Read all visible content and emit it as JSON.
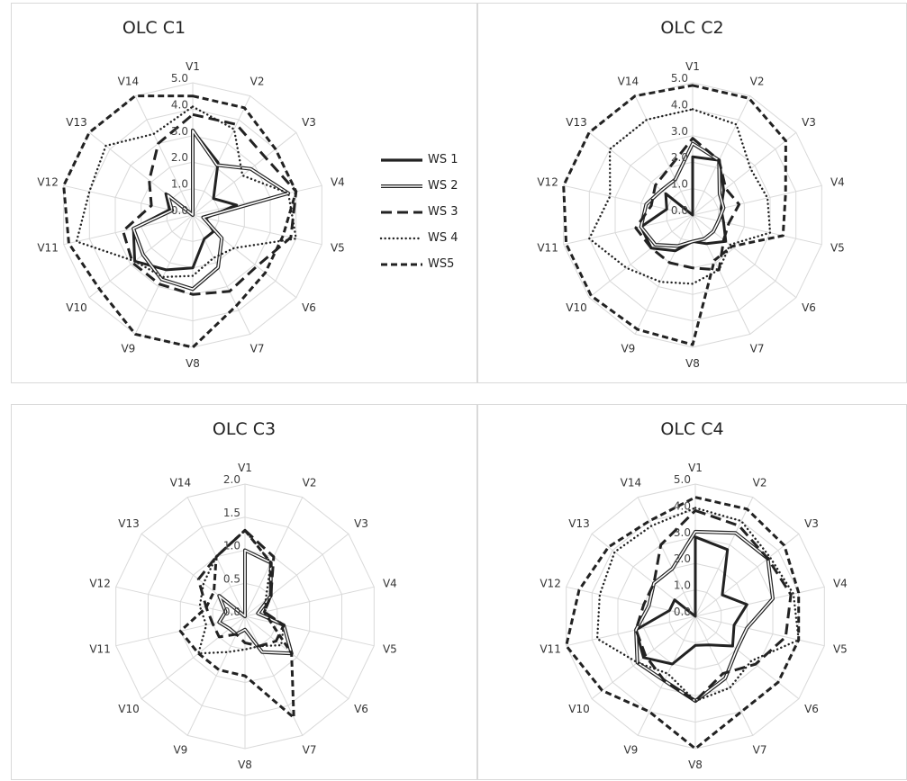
{
  "chart_data": [
    {
      "type": "radar",
      "title": "OLC C1",
      "axes": [
        "V1",
        "V2",
        "V3",
        "V4",
        "V5",
        "V6",
        "V7",
        "V8",
        "V9",
        "V10",
        "V11",
        "V12",
        "V13",
        "V14"
      ],
      "rlim": [
        0,
        5
      ],
      "ticks": [
        "0.0",
        "1.0",
        "2.0",
        "3.0",
        "4.0",
        "5.0"
      ],
      "series": [
        {
          "name": "WS 1",
          "values": [
            3.2,
            2.2,
            1.0,
            1.7,
            0.5,
            1.0,
            1.0,
            2.0,
            2.3,
            2.8,
            2.3,
            0.9,
            1.3,
            0.0
          ]
        },
        {
          "name": "WS 2",
          "values": [
            3.2,
            2.1,
            2.8,
            3.7,
            0.4,
            1.4,
            2.2,
            2.8,
            2.7,
            2.4,
            2.3,
            0.8,
            1.2,
            0.0
          ]
        },
        {
          "name": "WS 3",
          "values": [
            3.8,
            3.8,
            3.5,
            4.0,
            3.8,
            3.1,
            3.2,
            3.0,
            2.9,
            2.9,
            2.7,
            1.6,
            2.1,
            3.0
          ]
        },
        {
          "name": "WS 4",
          "values": [
            4.1,
            3.6,
            2.4,
            3.7,
            4.0,
            2.0,
            1.8,
            2.3,
            2.6,
            2.8,
            4.5,
            4.0,
            4.2,
            3.4
          ]
        },
        {
          "name": "WS5",
          "values": [
            4.5,
            4.5,
            4.0,
            4.0,
            3.5,
            3.5,
            3.8,
            5.0,
            5.0,
            4.5,
            4.8,
            5.0,
            5.0,
            5.0
          ]
        }
      ]
    },
    {
      "type": "radar",
      "title": "OLC C2",
      "axes": [
        "V1",
        "V2",
        "V3",
        "V4",
        "V5",
        "V6",
        "V7",
        "V8",
        "V9",
        "V10",
        "V11",
        "V12",
        "V13",
        "V14"
      ],
      "rlim": [
        0,
        5
      ],
      "ticks": [
        "0.0",
        "1.0",
        "2.0",
        "3.0",
        "4.0",
        "5.0"
      ],
      "series": [
        {
          "name": "WS 1",
          "values": [
            2.2,
            2.3,
            1.5,
            1.1,
            1.2,
            1.6,
            1.2,
            1.0,
            1.5,
            2.0,
            2.0,
            1.0,
            1.3,
            0.0
          ]
        },
        {
          "name": "WS 2",
          "values": [
            2.7,
            2.3,
            1.3,
            1.2,
            1.0,
            1.0,
            1.0,
            1.0,
            1.3,
            1.8,
            2.0,
            1.8,
            1.5,
            1.5
          ]
        },
        {
          "name": "WS 3",
          "values": [
            2.9,
            2.3,
            1.6,
            1.8,
            1.4,
            1.5,
            2.3,
            2.0,
            2.0,
            2.0,
            2.2,
            1.6,
            1.8,
            2.0
          ]
        },
        {
          "name": "WS 4",
          "values": [
            4.0,
            3.8,
            2.8,
            2.9,
            3.0,
            1.8,
            2.3,
            2.6,
            2.8,
            3.2,
            4.0,
            3.2,
            4.0,
            4.0
          ]
        },
        {
          "name": "WS5",
          "values": [
            4.9,
            4.9,
            4.5,
            3.6,
            3.5,
            1.9,
            1.9,
            4.9,
            4.8,
            4.9,
            4.9,
            5.0,
            5.0,
            5.0
          ]
        }
      ]
    },
    {
      "type": "radar",
      "title": "OLC C3",
      "axes": [
        "V1",
        "V2",
        "V3",
        "V4",
        "V5",
        "V6",
        "V7",
        "V8",
        "V9",
        "V10",
        "V11",
        "V12",
        "V13",
        "V14"
      ],
      "rlim": [
        0,
        2
      ],
      "ticks": [
        "0.0",
        "0.5",
        "1.0",
        "1.5",
        "2.0"
      ],
      "series": [
        {
          "name": "WS 1",
          "values": [
            0.3,
            0.0,
            0.0,
            0.0,
            0.0,
            0.0,
            0.0,
            0.0,
            0.0,
            0.0,
            0.0,
            0.0,
            0.0,
            0.0
          ]
        },
        {
          "name": "WS 2",
          "values": [
            1.0,
            0.9,
            0.5,
            0.2,
            0.6,
            0.9,
            0.6,
            0.2,
            0.3,
            0.3,
            0.4,
            0.3,
            0.5,
            0.0
          ]
        },
        {
          "name": "WS 3",
          "values": [
            1.3,
            1.0,
            0.5,
            0.3,
            0.6,
            0.6,
            0.5,
            0.4,
            0.3,
            0.5,
            0.5,
            0.6,
            0.9,
            1.0
          ]
        },
        {
          "name": "WS 4",
          "values": [
            1.3,
            0.9,
            0.4,
            0.3,
            0.6,
            0.7,
            0.5,
            0.5,
            0.6,
            0.9,
            0.6,
            0.7,
            0.8,
            1.0
          ]
        },
        {
          "name": "WS5",
          "values": [
            1.3,
            0.9,
            0.5,
            0.3,
            0.4,
            0.9,
            1.7,
            0.9,
            0.9,
            0.9,
            1.0,
            0.6,
            0.6,
            1.0
          ]
        }
      ]
    },
    {
      "type": "radar",
      "title": "OLC C4",
      "axes": [
        "V1",
        "V2",
        "V3",
        "V4",
        "V5",
        "V6",
        "V7",
        "V8",
        "V9",
        "V10",
        "V11",
        "V12",
        "V13",
        "V14"
      ],
      "rlim": [
        0,
        5
      ],
      "ticks": [
        "0.0",
        "1.0",
        "2.0",
        "3.0",
        "4.0",
        "5.0"
      ],
      "series": [
        {
          "name": "WS 1",
          "values": [
            3.0,
            2.8,
            1.3,
            2.0,
            1.5,
            1.8,
            1.2,
            1.1,
            2.0,
            2.5,
            2.3,
            1.0,
            1.0,
            0.0
          ]
        },
        {
          "name": "WS 2",
          "values": [
            3.2,
            3.5,
            3.5,
            3.0,
            2.0,
            2.0,
            2.6,
            3.2,
            2.7,
            2.8,
            2.3,
            1.8,
            2.0,
            2.0
          ]
        },
        {
          "name": "WS 3",
          "values": [
            4.0,
            3.8,
            3.5,
            3.7,
            3.5,
            2.9,
            2.4,
            3.2,
            2.7,
            2.4,
            2.3,
            2.0,
            2.0,
            3.0
          ]
        },
        {
          "name": "WS 4",
          "values": [
            4.1,
            4.0,
            3.6,
            3.8,
            4.0,
            2.7,
            3.0,
            3.2,
            2.4,
            2.8,
            3.8,
            3.7,
            3.9,
            3.8
          ]
        },
        {
          "name": "WS5",
          "values": [
            4.5,
            4.5,
            4.3,
            4.0,
            4.0,
            4.0,
            4.0,
            5.0,
            4.0,
            4.5,
            5.0,
            4.5,
            4.2,
            4.0
          ]
        }
      ]
    }
  ],
  "legend": {
    "items": [
      {
        "label": "WS 1",
        "style": "solid-thick"
      },
      {
        "label": "WS 2",
        "style": "double"
      },
      {
        "label": "WS 3",
        "style": "long-dash"
      },
      {
        "label": "WS 4",
        "style": "dotted"
      },
      {
        "label": "WS5",
        "style": "short-dash"
      }
    ]
  },
  "colors": {
    "series": "#222222",
    "grid": "#d9d9d9"
  }
}
